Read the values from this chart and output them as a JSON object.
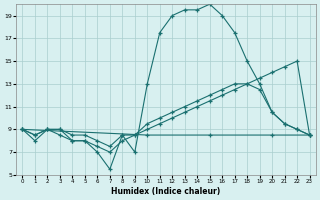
{
  "xlabel": "Humidex (Indice chaleur)",
  "background_color": "#d8f0f0",
  "grid_color": "#aacece",
  "line_color": "#1a7070",
  "xlim": [
    -0.5,
    23.5
  ],
  "ylim": [
    5,
    20
  ],
  "yticks": [
    5,
    7,
    9,
    11,
    13,
    15,
    17,
    19
  ],
  "xticks": [
    0,
    1,
    2,
    3,
    4,
    5,
    6,
    7,
    8,
    9,
    10,
    11,
    12,
    13,
    14,
    15,
    16,
    17,
    18,
    19,
    20,
    21,
    22,
    23
  ],
  "series1_x": [
    0,
    1,
    2,
    3,
    4,
    5,
    6,
    7,
    8,
    9,
    10,
    11,
    12,
    13,
    14,
    15,
    16,
    17,
    18,
    19,
    20,
    21,
    22,
    23
  ],
  "series1_y": [
    9.0,
    8.0,
    9.0,
    9.0,
    8.0,
    8.0,
    7.0,
    5.5,
    8.5,
    7.0,
    13.0,
    17.5,
    19.0,
    19.5,
    19.5,
    20.0,
    19.0,
    17.5,
    15.0,
    13.0,
    10.5,
    9.5,
    9.0,
    8.5
  ],
  "series2_x": [
    0,
    1,
    2,
    3,
    4,
    5,
    6,
    7,
    8,
    9,
    10,
    11,
    12,
    13,
    14,
    15,
    16,
    17,
    18,
    19,
    20,
    21,
    22,
    23
  ],
  "series2_y": [
    9.0,
    8.5,
    9.0,
    8.5,
    8.0,
    8.0,
    7.5,
    7.0,
    8.0,
    8.5,
    9.0,
    9.5,
    10.0,
    10.5,
    11.0,
    11.5,
    12.0,
    12.5,
    13.0,
    13.5,
    14.0,
    14.5,
    15.0,
    8.5
  ],
  "series3_x": [
    0,
    1,
    2,
    3,
    4,
    5,
    6,
    7,
    8,
    9,
    10,
    11,
    12,
    13,
    14,
    15,
    16,
    17,
    18,
    19,
    20,
    21,
    22,
    23
  ],
  "series3_y": [
    9.0,
    8.5,
    9.0,
    9.0,
    8.5,
    8.5,
    8.0,
    7.5,
    8.5,
    8.5,
    9.5,
    10.0,
    10.5,
    11.0,
    11.5,
    12.0,
    12.5,
    13.0,
    13.0,
    12.5,
    10.5,
    9.5,
    9.0,
    8.5
  ],
  "series4_x": [
    0,
    10,
    15,
    20,
    23
  ],
  "series4_y": [
    9.0,
    8.5,
    8.5,
    8.5,
    8.5
  ]
}
